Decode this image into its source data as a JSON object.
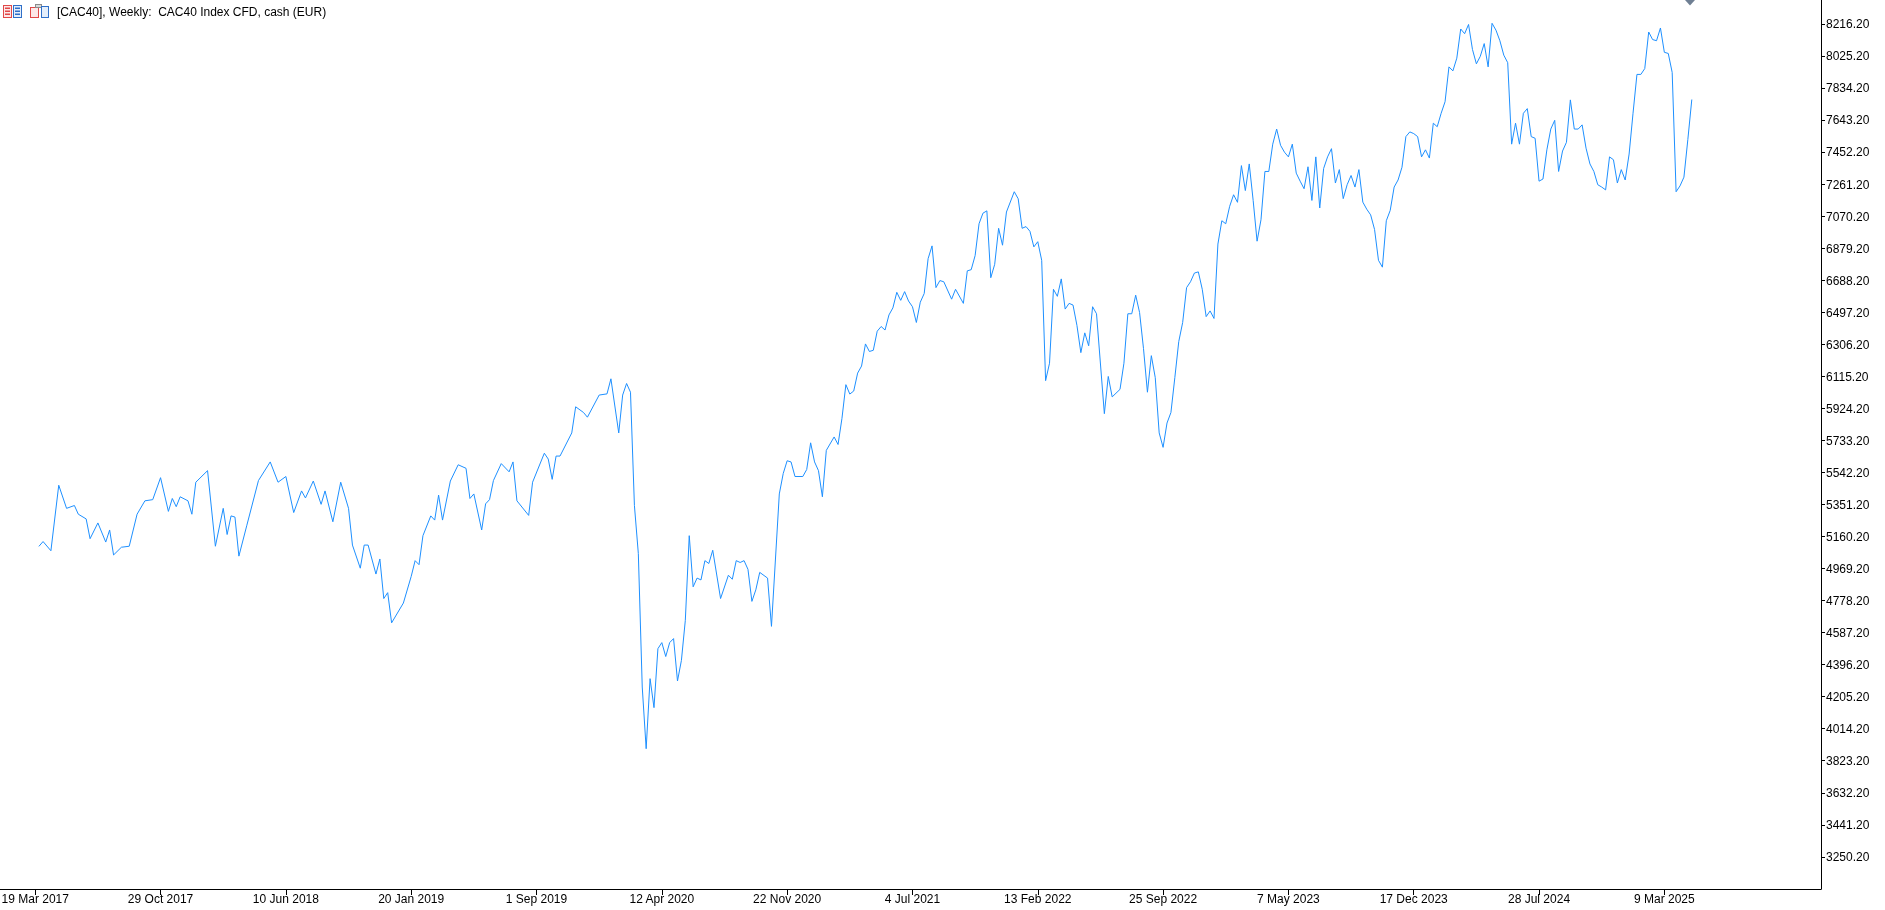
{
  "chart_data": {
    "type": "line",
    "title": "[CAC40], Weekly:  CAC40 Index CFD, cash (EUR)",
    "color": "#1e90ff",
    "x": [
      "2017-03-26",
      "2017-04-02",
      "2017-04-16",
      "2017-04-30",
      "2017-05-14",
      "2017-05-28",
      "2017-06-04",
      "2017-06-18",
      "2017-06-25",
      "2017-07-09",
      "2017-07-23",
      "2017-07-30",
      "2017-08-06",
      "2017-08-20",
      "2017-09-03",
      "2017-09-17",
      "2017-10-01",
      "2017-10-15",
      "2017-10-29",
      "2017-11-12",
      "2017-11-19",
      "2017-11-26",
      "2017-12-03",
      "2017-12-17",
      "2017-12-24",
      "2017-12-31",
      "2018-01-21",
      "2018-02-04",
      "2018-02-18",
      "2018-02-25",
      "2018-03-04",
      "2018-03-11",
      "2018-03-18",
      "2018-04-01",
      "2018-04-22",
      "2018-05-13",
      "2018-05-27",
      "2018-06-10",
      "2018-06-24",
      "2018-07-08",
      "2018-07-15",
      "2018-07-29",
      "2018-08-12",
      "2018-08-19",
      "2018-09-02",
      "2018-09-16",
      "2018-09-30",
      "2018-10-07",
      "2018-10-21",
      "2018-10-28",
      "2018-11-04",
      "2018-11-18",
      "2018-11-25",
      "2018-12-02",
      "2018-12-09",
      "2018-12-16",
      "2019-01-06",
      "2019-01-20",
      "2019-01-27",
      "2019-02-03",
      "2019-02-10",
      "2019-02-24",
      "2019-03-03",
      "2019-03-10",
      "2019-03-17",
      "2019-03-31",
      "2019-04-14",
      "2019-04-28",
      "2019-05-05",
      "2019-05-12",
      "2019-05-26",
      "2019-06-02",
      "2019-06-09",
      "2019-06-16",
      "2019-06-30",
      "2019-07-14",
      "2019-07-21",
      "2019-07-28",
      "2019-08-18",
      "2019-08-25",
      "2019-09-15",
      "2019-09-22",
      "2019-09-29",
      "2019-10-06",
      "2019-10-13",
      "2019-11-03",
      "2019-11-10",
      "2019-11-24",
      "2019-12-01",
      "2019-12-22",
      "2020-01-05",
      "2020-01-12",
      "2020-01-26",
      "2020-02-02",
      "2020-02-09",
      "2020-02-16",
      "2020-02-23",
      "2020-03-01",
      "2020-03-08",
      "2020-03-15",
      "2020-03-22",
      "2020-03-29",
      "2020-04-05",
      "2020-04-12",
      "2020-04-19",
      "2020-04-26",
      "2020-05-03",
      "2020-05-10",
      "2020-05-17",
      "2020-05-24",
      "2020-05-31",
      "2020-06-07",
      "2020-06-14",
      "2020-06-21",
      "2020-06-28",
      "2020-07-05",
      "2020-07-12",
      "2020-07-26",
      "2020-08-09",
      "2020-08-16",
      "2020-08-23",
      "2020-08-30",
      "2020-09-06",
      "2020-09-13",
      "2020-09-20",
      "2020-09-27",
      "2020-10-04",
      "2020-10-18",
      "2020-10-25",
      "2020-11-08",
      "2020-11-15",
      "2020-11-22",
      "2020-11-29",
      "2020-12-06",
      "2020-12-20",
      "2020-12-27",
      "2021-01-03",
      "2021-01-10",
      "2021-01-17",
      "2021-01-24",
      "2021-01-31",
      "2021-02-14",
      "2021-02-21",
      "2021-02-28",
      "2021-03-07",
      "2021-03-14",
      "2021-03-21",
      "2021-03-28",
      "2021-04-04",
      "2021-04-11",
      "2021-04-18",
      "2021-04-25",
      "2021-05-02",
      "2021-05-09",
      "2021-05-16",
      "2021-05-23",
      "2021-05-30",
      "2021-06-06",
      "2021-06-13",
      "2021-06-20",
      "2021-06-27",
      "2021-07-04",
      "2021-07-11",
      "2021-07-18",
      "2021-07-25",
      "2021-08-01",
      "2021-08-08",
      "2021-08-15",
      "2021-08-22",
      "2021-08-29",
      "2021-09-12",
      "2021-09-19",
      "2021-10-03",
      "2021-10-10",
      "2021-10-17",
      "2021-10-24",
      "2021-10-31",
      "2021-11-07",
      "2021-11-14",
      "2021-11-21",
      "2021-11-28",
      "2021-12-05",
      "2021-12-12",
      "2021-12-19",
      "2022-01-02",
      "2022-01-09",
      "2022-01-16",
      "2022-01-23",
      "2022-01-30",
      "2022-02-06",
      "2022-02-13",
      "2022-02-20",
      "2022-02-27",
      "2022-03-06",
      "2022-03-13",
      "2022-03-20",
      "2022-03-27",
      "2022-04-03",
      "2022-04-10",
      "2022-04-17",
      "2022-04-24",
      "2022-05-01",
      "2022-05-08",
      "2022-05-15",
      "2022-05-22",
      "2022-05-29",
      "2022-06-12",
      "2022-06-19",
      "2022-06-26",
      "2022-07-10",
      "2022-07-17",
      "2022-07-24",
      "2022-07-31",
      "2022-08-07",
      "2022-08-14",
      "2022-08-21",
      "2022-08-28",
      "2022-09-04",
      "2022-09-11",
      "2022-09-18",
      "2022-09-25",
      "2022-10-02",
      "2022-10-09",
      "2022-10-16",
      "2022-10-23",
      "2022-10-30",
      "2022-11-06",
      "2022-11-13",
      "2022-11-20",
      "2022-11-27",
      "2022-12-04",
      "2022-12-11",
      "2022-12-18",
      "2022-12-25",
      "2023-01-01",
      "2023-01-08",
      "2023-01-15",
      "2023-01-22",
      "2023-01-29",
      "2023-02-05",
      "2023-02-12",
      "2023-02-19",
      "2023-02-26",
      "2023-03-05",
      "2023-03-12",
      "2023-03-19",
      "2023-03-26",
      "2023-04-02",
      "2023-04-09",
      "2023-04-16",
      "2023-04-23",
      "2023-04-30",
      "2023-05-07",
      "2023-05-14",
      "2023-05-21",
      "2023-05-28",
      "2023-06-04",
      "2023-06-11",
      "2023-06-18",
      "2023-06-25",
      "2023-07-02",
      "2023-07-09",
      "2023-07-16",
      "2023-07-23",
      "2023-07-30",
      "2023-08-06",
      "2023-08-13",
      "2023-08-20",
      "2023-08-27",
      "2023-09-03",
      "2023-09-10",
      "2023-09-17",
      "2023-09-24",
      "2023-10-01",
      "2023-10-08",
      "2023-10-15",
      "2023-10-22",
      "2023-10-29",
      "2023-11-05",
      "2023-11-12",
      "2023-11-19",
      "2023-11-26",
      "2023-12-03",
      "2023-12-10",
      "2023-12-17",
      "2023-12-24",
      "2023-12-31",
      "2024-01-07",
      "2024-01-14",
      "2024-01-21",
      "2024-01-28",
      "2024-02-04",
      "2024-02-11",
      "2024-02-18",
      "2024-02-25",
      "2024-03-03",
      "2024-03-10",
      "2024-03-17",
      "2024-03-24",
      "2024-03-31",
      "2024-04-07",
      "2024-04-14",
      "2024-04-21",
      "2024-04-28",
      "2024-05-05",
      "2024-05-12",
      "2024-05-19",
      "2024-05-26",
      "2024-06-02",
      "2024-06-09",
      "2024-06-16",
      "2024-06-23",
      "2024-06-30",
      "2024-07-07",
      "2024-07-14",
      "2024-07-21",
      "2024-07-28",
      "2024-08-04",
      "2024-08-11",
      "2024-08-18",
      "2024-08-25",
      "2024-09-01",
      "2024-09-08",
      "2024-09-15",
      "2024-09-22",
      "2024-09-29",
      "2024-10-06",
      "2024-10-13",
      "2024-10-20",
      "2024-10-27",
      "2024-11-03",
      "2024-11-10",
      "2024-11-17",
      "2024-11-24",
      "2024-12-01",
      "2024-12-08",
      "2024-12-15",
      "2024-12-22",
      "2024-12-29",
      "2025-01-05",
      "2025-01-12",
      "2025-01-19",
      "2025-01-26",
      "2025-02-02",
      "2025-02-09",
      "2025-02-16",
      "2025-02-23",
      "2025-03-02",
      "2025-03-09",
      "2025-03-16",
      "2025-03-23",
      "2025-03-30",
      "2025-04-06",
      "2025-04-13",
      "2025-04-20",
      "2025-04-27"
    ],
    "values": [
      5104,
      5131,
      5076,
      5467,
      5329,
      5346,
      5294,
      5266,
      5148,
      5242,
      5128,
      5200,
      5051,
      5097,
      5103,
      5294,
      5374,
      5381,
      5512,
      5311,
      5388,
      5339,
      5398,
      5374,
      5294,
      5485,
      5554,
      5103,
      5329,
      5173,
      5284,
      5277,
      5044,
      5225,
      5495,
      5606,
      5485,
      5519,
      5304,
      5433,
      5391,
      5492,
      5353,
      5433,
      5249,
      5485,
      5329,
      5110,
      4972,
      5110,
      5110,
      4937,
      5027,
      4791,
      4826,
      4646,
      4764,
      4923,
      5017,
      4993,
      5166,
      5284,
      5259,
      5408,
      5259,
      5492,
      5589,
      5568,
      5388,
      5415,
      5200,
      5356,
      5381,
      5495,
      5596,
      5547,
      5606,
      5374,
      5287,
      5485,
      5658,
      5623,
      5502,
      5641,
      5641,
      5779,
      5935,
      5901,
      5873,
      6005,
      6012,
      6102,
      5779,
      6005,
      6074,
      6022,
      5346,
      5059,
      4263,
      3895,
      4313,
      4140,
      4492,
      4528,
      4445,
      4528,
      4552,
      4299,
      4422,
      4661,
      5166,
      4861,
      4913,
      4902,
      5017,
      5000,
      5079,
      4791,
      4930,
      4906,
      5017,
      5006,
      5017,
      4965,
      4774,
      4843,
      4947,
      4913,
      4625,
      5415,
      5537,
      5613,
      5606,
      5519,
      5519,
      5561,
      5720,
      5606,
      5554,
      5398,
      5675,
      5755,
      5710,
      5866,
      6067,
      6011,
      6029,
      6136,
      6178,
      6310,
      6265,
      6272,
      6386,
      6414,
      6393,
      6483,
      6525,
      6618,
      6570,
      6622,
      6566,
      6532,
      6438,
      6559,
      6611,
      6819,
      6895,
      6646,
      6688,
      6681,
      6577,
      6636,
      6552,
      6746,
      6753,
      6837,
      7027,
      7090,
      7104,
      6705,
      6785,
      7000,
      6899,
      7097,
      7218,
      7176,
      7000,
      7010,
      6982,
      6889,
      6920,
      6809,
      6091,
      6195,
      6636,
      6594,
      6698,
      6518,
      6552,
      6542,
      6421,
      6258,
      6376,
      6299,
      6532,
      6490,
      5894,
      6116,
      5994,
      6039,
      6195,
      6490,
      6490,
      6601,
      6497,
      6282,
      6022,
      6240,
      6109,
      5779,
      5693,
      5838,
      5901,
      6109,
      6324,
      6438,
      6646,
      6681,
      6733,
      6740,
      6636,
      6473,
      6507,
      6462,
      6906,
      7045,
      7027,
      7131,
      7200,
      7155,
      7374,
      7225,
      7384,
      7166,
      6923,
      7051,
      7339,
      7339,
      7502,
      7592,
      7495,
      7454,
      7426,
      7502,
      7329,
      7281,
      7236,
      7367,
      7166,
      7426,
      7121,
      7357,
      7426,
      7475,
      7270,
      7350,
      7177,
      7260,
      7315,
      7246,
      7350,
      7156,
      7114,
      7080,
      6993,
      6809,
      6768,
      7045,
      7107,
      7246,
      7288,
      7364,
      7547,
      7575,
      7565,
      7547,
      7426,
      7468,
      7419,
      7627,
      7606,
      7686,
      7755,
      7963,
      7939,
      8015,
      8189,
      8161,
      8216,
      8067,
      7981,
      8026,
      8102,
      7963,
      8223,
      8182,
      8119,
      8033,
      7988,
      7502,
      7627,
      7502,
      7686,
      7714,
      7547,
      7537,
      7281,
      7294,
      7468,
      7592,
      7644,
      7339,
      7461,
      7513,
      7766,
      7592,
      7592,
      7617,
      7478,
      7384,
      7339,
      7260,
      7246,
      7229,
      7426,
      7409,
      7270,
      7350,
      7288,
      7443,
      7686,
      7918,
      7918,
      7953,
      8171,
      8126,
      8119,
      8195,
      8050,
      8043,
      7930,
      7218,
      7253,
      7305,
      7530,
      7766
    ],
    "xlim": [
      "2017-01-15",
      "2025-12-14"
    ],
    "xticks": [
      {
        "value": "2017-03-19",
        "label": "19 Mar 2017"
      },
      {
        "value": "2017-10-29",
        "label": "29 Oct 2017"
      },
      {
        "value": "2018-06-10",
        "label": "10 Jun 2018"
      },
      {
        "value": "2019-01-20",
        "label": "20 Jan 2019"
      },
      {
        "value": "2019-09-01",
        "label": "1 Sep 2019"
      },
      {
        "value": "2020-04-12",
        "label": "12 Apr 2020"
      },
      {
        "value": "2020-11-22",
        "label": "22 Nov 2020"
      },
      {
        "value": "2021-07-04",
        "label": "4 Jul 2021"
      },
      {
        "value": "2022-02-13",
        "label": "13 Feb 2022"
      },
      {
        "value": "2022-09-25",
        "label": "25 Sep 2022"
      },
      {
        "value": "2023-05-07",
        "label": "7 May 2023"
      },
      {
        "value": "2023-12-17",
        "label": "17 Dec 2023"
      },
      {
        "value": "2024-07-28",
        "label": "28 Jul 2024"
      },
      {
        "value": "2025-03-09",
        "label": "9 Mar 2025"
      }
    ],
    "ylim": [
      3058,
      8362
    ],
    "yticks": [
      {
        "value": 3250.2,
        "label": "3250.20"
      },
      {
        "value": 3441.2,
        "label": "3441.20"
      },
      {
        "value": 3632.2,
        "label": "3632.20"
      },
      {
        "value": 3823.2,
        "label": "3823.20"
      },
      {
        "value": 4014.2,
        "label": "4014.20"
      },
      {
        "value": 4205.2,
        "label": "4205.20"
      },
      {
        "value": 4396.2,
        "label": "4396.20"
      },
      {
        "value": 4587.2,
        "label": "4587.20"
      },
      {
        "value": 4778.2,
        "label": "4778.20"
      },
      {
        "value": 4969.2,
        "label": "4969.20"
      },
      {
        "value": 5160.2,
        "label": "5160.20"
      },
      {
        "value": 5351.2,
        "label": "5351.20"
      },
      {
        "value": 5542.2,
        "label": "5542.20"
      },
      {
        "value": 5733.2,
        "label": "5733.20"
      },
      {
        "value": 5924.2,
        "label": "5924.20"
      },
      {
        "value": 6115.2,
        "label": "6115.20"
      },
      {
        "value": 6306.2,
        "label": "6306.20"
      },
      {
        "value": 6497.2,
        "label": "6497.20"
      },
      {
        "value": 6688.2,
        "label": "6688.20"
      },
      {
        "value": 6879.2,
        "label": "6879.20"
      },
      {
        "value": 7070.2,
        "label": "7070.20"
      },
      {
        "value": 7261.2,
        "label": "7261.20"
      },
      {
        "value": 7452.2,
        "label": "7452.20"
      },
      {
        "value": 7643.2,
        "label": "7643.20"
      },
      {
        "value": 7834.2,
        "label": "7834.20"
      },
      {
        "value": 8025.2,
        "label": "8025.20"
      },
      {
        "value": 8216.2,
        "label": "8216.20"
      }
    ]
  }
}
